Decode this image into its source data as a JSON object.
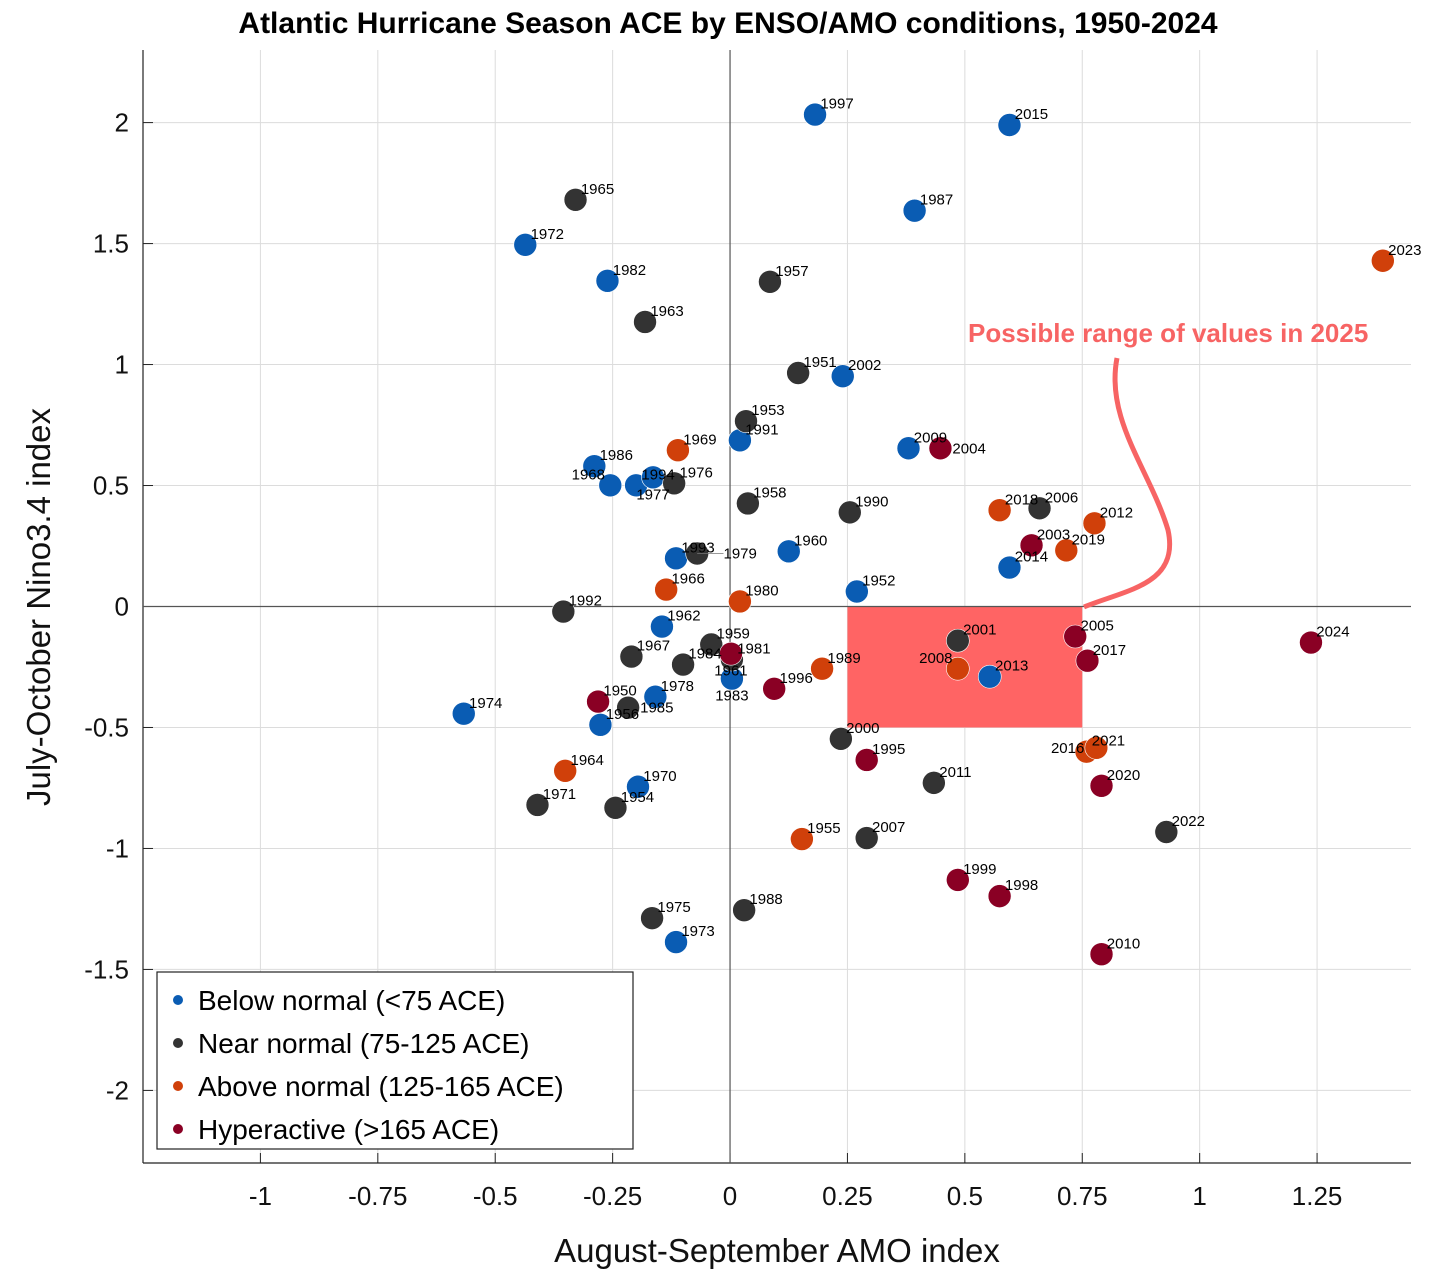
{
  "chart_data": {
    "type": "scatter",
    "title": "Atlantic Hurricane Season ACE by ENSO/AMO conditions, 1950-2024",
    "xlabel": "August-September AMO index",
    "ylabel": "July-October Nino3.4 index",
    "xlim": [
      -1.25,
      1.45
    ],
    "ylim": [
      -2.3,
      2.3
    ],
    "xticks": [
      -1,
      -0.75,
      -0.5,
      -0.25,
      0,
      0.25,
      0.5,
      0.75,
      1,
      1.25
    ],
    "xtick_labels": [
      "-1",
      "-0.75",
      "-0.5",
      "-0.25",
      "0",
      "0.25",
      "0.5",
      "0.75",
      "1",
      "1.25"
    ],
    "yticks": [
      2,
      1.5,
      1,
      0.5,
      0,
      -0.5,
      -1,
      -1.5,
      -2
    ],
    "ytick_labels": [
      "2",
      "1.5",
      "1",
      "0.5",
      "0",
      "-0.5",
      "-1",
      "-1.5",
      "-2"
    ],
    "grid": true,
    "legend_position": "bottom-left",
    "annotation": {
      "text": "Possible range of values in 2025",
      "color": "#f76464",
      "region": {
        "x": [
          0.25,
          0.75
        ],
        "y": [
          -0.5,
          0
        ]
      }
    },
    "series": [
      {
        "name": "Below normal (<75 ACE)",
        "color": "#0a5cb3",
        "points": [
          {
            "year": "1997",
            "x": 0.181,
            "y": 2.033
          },
          {
            "year": "2015",
            "x": 0.595,
            "y": 1.99
          },
          {
            "year": "1987",
            "x": 0.393,
            "y": 1.636
          },
          {
            "year": "1972",
            "x": -0.436,
            "y": 1.495
          },
          {
            "year": "1982",
            "x": -0.261,
            "y": 1.346
          },
          {
            "year": "2002",
            "x": 0.24,
            "y": 0.952
          },
          {
            "year": "1991",
            "x": 0.021,
            "y": 0.687
          },
          {
            "year": "2009",
            "x": 0.38,
            "y": 0.654
          },
          {
            "year": "1986",
            "x": -0.289,
            "y": 0.58
          },
          {
            "year": "1968",
            "x": -0.255,
            "y": 0.501
          },
          {
            "year": "1994",
            "x": -0.2,
            "y": 0.501
          },
          {
            "year": "1977",
            "x": -0.164,
            "y": 0.534
          },
          {
            "year": "1993",
            "x": -0.115,
            "y": 0.199
          },
          {
            "year": "1960",
            "x": 0.125,
            "y": 0.228
          },
          {
            "year": "1952",
            "x": 0.27,
            "y": 0.062
          },
          {
            "year": "2014",
            "x": 0.595,
            "y": 0.161
          },
          {
            "year": "1962",
            "x": -0.145,
            "y": -0.083
          },
          {
            "year": "1983",
            "x": 0.004,
            "y": -0.298
          },
          {
            "year": "1978",
            "x": -0.159,
            "y": -0.373
          },
          {
            "year": "1956",
            "x": -0.276,
            "y": -0.489
          },
          {
            "year": "1974",
            "x": -0.567,
            "y": -0.443
          },
          {
            "year": "2013",
            "x": 0.553,
            "y": -0.29
          },
          {
            "year": "1970",
            "x": -0.196,
            "y": -0.745
          },
          {
            "year": "1973",
            "x": -0.115,
            "y": -1.387
          }
        ]
      },
      {
        "name": "Near normal (75-125 ACE)",
        "color": "#333333",
        "points": [
          {
            "year": "1965",
            "x": -0.329,
            "y": 1.681
          },
          {
            "year": "1957",
            "x": 0.085,
            "y": 1.342
          },
          {
            "year": "1963",
            "x": -0.181,
            "y": 1.176
          },
          {
            "year": "1951",
            "x": 0.145,
            "y": 0.965
          },
          {
            "year": "1953",
            "x": 0.034,
            "y": 0.766
          },
          {
            "year": "1976",
            "x": -0.119,
            "y": 0.509
          },
          {
            "year": "1958",
            "x": 0.038,
            "y": 0.426
          },
          {
            "year": "1990",
            "x": 0.255,
            "y": 0.389
          },
          {
            "year": "2006",
            "x": 0.659,
            "y": 0.406
          },
          {
            "year": "1979",
            "x": -0.07,
            "y": 0.219
          },
          {
            "year": "1992",
            "x": -0.355,
            "y": -0.021
          },
          {
            "year": "1959",
            "x": -0.04,
            "y": -0.157
          },
          {
            "year": "1981",
            "x": 0.004,
            "y": -0.219
          },
          {
            "year": "1967",
            "x": -0.21,
            "y": -0.207
          },
          {
            "year": "1984",
            "x": -0.1,
            "y": -0.24
          },
          {
            "year": "1985",
            "x": -0.217,
            "y": -0.418
          },
          {
            "year": "2001",
            "x": 0.485,
            "y": -0.141
          },
          {
            "year": "2000",
            "x": 0.236,
            "y": -0.547
          },
          {
            "year": "2011",
            "x": 0.434,
            "y": -0.729
          },
          {
            "year": "1971",
            "x": -0.41,
            "y": -0.82
          },
          {
            "year": "1954",
            "x": -0.244,
            "y": -0.832
          },
          {
            "year": "2007",
            "x": 0.291,
            "y": -0.957
          },
          {
            "year": "2022",
            "x": 0.929,
            "y": -0.932
          },
          {
            "year": "1975",
            "x": -0.166,
            "y": -1.288
          },
          {
            "year": "1988",
            "x": 0.03,
            "y": -1.255
          }
        ]
      },
      {
        "name": "Above normal (125-165 ACE)",
        "color": "#d0400a",
        "points": [
          {
            "year": "2023",
            "x": 1.39,
            "y": 1.429
          },
          {
            "year": "1969",
            "x": -0.111,
            "y": 0.646
          },
          {
            "year": "2018",
            "x": 0.574,
            "y": 0.398
          },
          {
            "year": "2012",
            "x": 0.776,
            "y": 0.344
          },
          {
            "year": "2019",
            "x": 0.716,
            "y": 0.232
          },
          {
            "year": "1966",
            "x": -0.136,
            "y": 0.07
          },
          {
            "year": "1980",
            "x": 0.021,
            "y": 0.021
          },
          {
            "year": "1989",
            "x": 0.196,
            "y": -0.257
          },
          {
            "year": "2008",
            "x": 0.485,
            "y": -0.257
          },
          {
            "year": "2021",
            "x": 0.759,
            "y": -0.6
          },
          {
            "year": "2016",
            "x": 0.78,
            "y": -0.584
          },
          {
            "year": "1964",
            "x": -0.351,
            "y": -0.679
          },
          {
            "year": "1955",
            "x": 0.153,
            "y": -0.961
          }
        ]
      },
      {
        "name": "Hyperactive (>165 ACE)",
        "color": "#8a0024",
        "points": [
          {
            "year": "2004",
            "x": 0.448,
            "y": 0.654
          },
          {
            "year": "2003",
            "x": 0.642,
            "y": 0.253
          },
          {
            "year": "1961",
            "x": 0.002,
            "y": -0.195
          },
          {
            "year": "1996",
            "x": 0.094,
            "y": -0.34
          },
          {
            "year": "1950",
            "x": -0.281,
            "y": -0.393
          },
          {
            "year": "2005",
            "x": 0.735,
            "y": -0.124
          },
          {
            "year": "2017",
            "x": 0.761,
            "y": -0.224
          },
          {
            "year": "2024",
            "x": 1.237,
            "y": -0.149
          },
          {
            "year": "1995",
            "x": 0.291,
            "y": -0.634
          },
          {
            "year": "2020",
            "x": 0.791,
            "y": -0.741
          },
          {
            "year": "1999",
            "x": 0.485,
            "y": -1.13
          },
          {
            "year": "1998",
            "x": 0.574,
            "y": -1.197
          },
          {
            "year": "2010",
            "x": 0.791,
            "y": -1.437
          }
        ]
      }
    ]
  }
}
